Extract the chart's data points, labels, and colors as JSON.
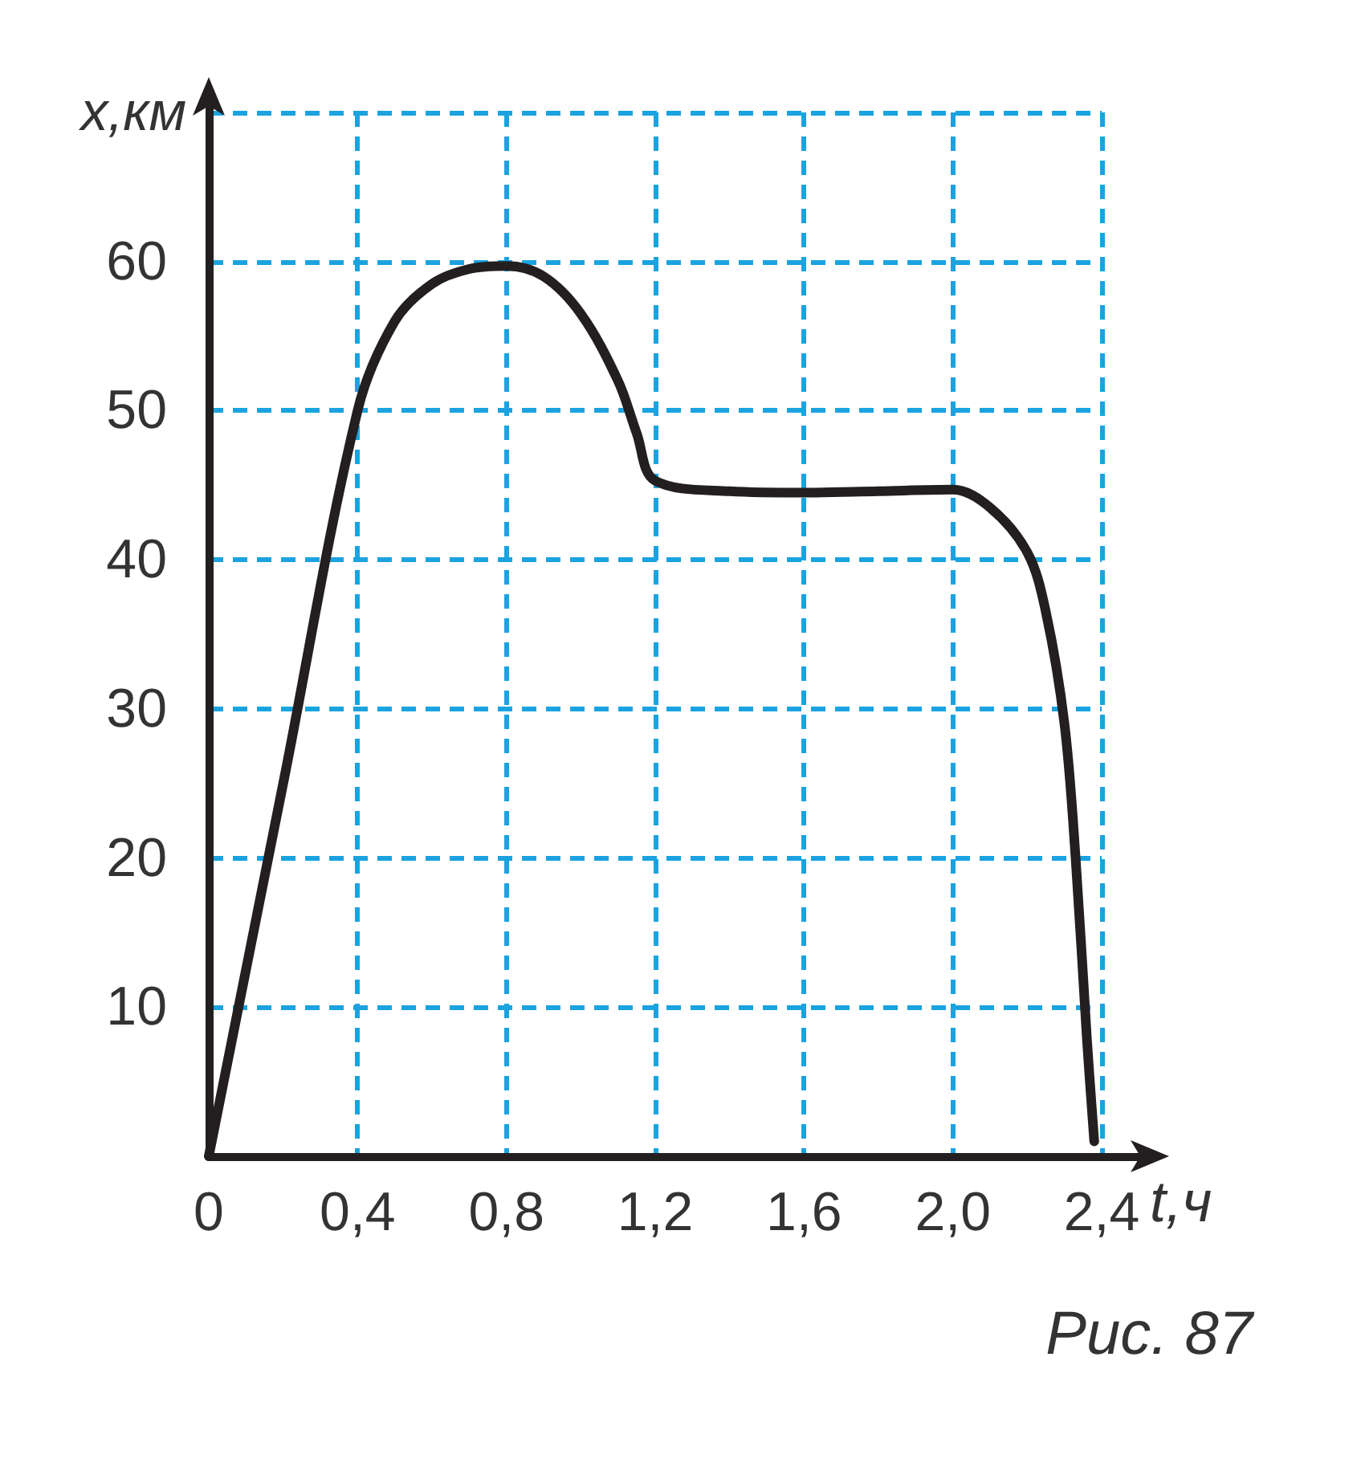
{
  "chart_data": {
    "type": "line",
    "xlabel": "t,ч",
    "ylabel": "x,км",
    "x": [
      0,
      0.2,
      0.4,
      0.5,
      0.6,
      0.7,
      0.8,
      0.9,
      1.0,
      1.1,
      1.15,
      1.2,
      1.4,
      1.6,
      1.8,
      2.0,
      2.1,
      2.2,
      2.25,
      2.3,
      2.33,
      2.36,
      2.38
    ],
    "series": [
      {
        "color": "#231f20",
        "values": [
          0,
          25,
          50,
          56,
          58.5,
          59.5,
          59.7,
          59,
          56.5,
          52,
          48.5,
          45.3,
          44.6,
          44.5,
          44.6,
          44.7,
          43.5,
          40.5,
          36.5,
          29,
          20,
          8,
          1
        ]
      }
    ],
    "xlim": [
      0,
      2.4
    ],
    "ylim": [
      0,
      70
    ],
    "xticks": [
      0,
      {
        "value": 0.4,
        "label": "0,4"
      },
      {
        "value": 0.8,
        "label": "0,8"
      },
      {
        "value": 1.2,
        "label": "1,2"
      },
      {
        "value": 1.6,
        "label": "1,6"
      },
      {
        "value": 2.0,
        "label": "2,0"
      },
      {
        "value": 2.4,
        "label": "2,4"
      }
    ],
    "yticks": [
      10,
      20,
      30,
      40,
      50,
      60,
      {
        "value": 70,
        "label": null
      }
    ],
    "grid": true,
    "marker": "none",
    "line_style": "solid",
    "annotations": [
      "Рис. 87"
    ]
  }
}
